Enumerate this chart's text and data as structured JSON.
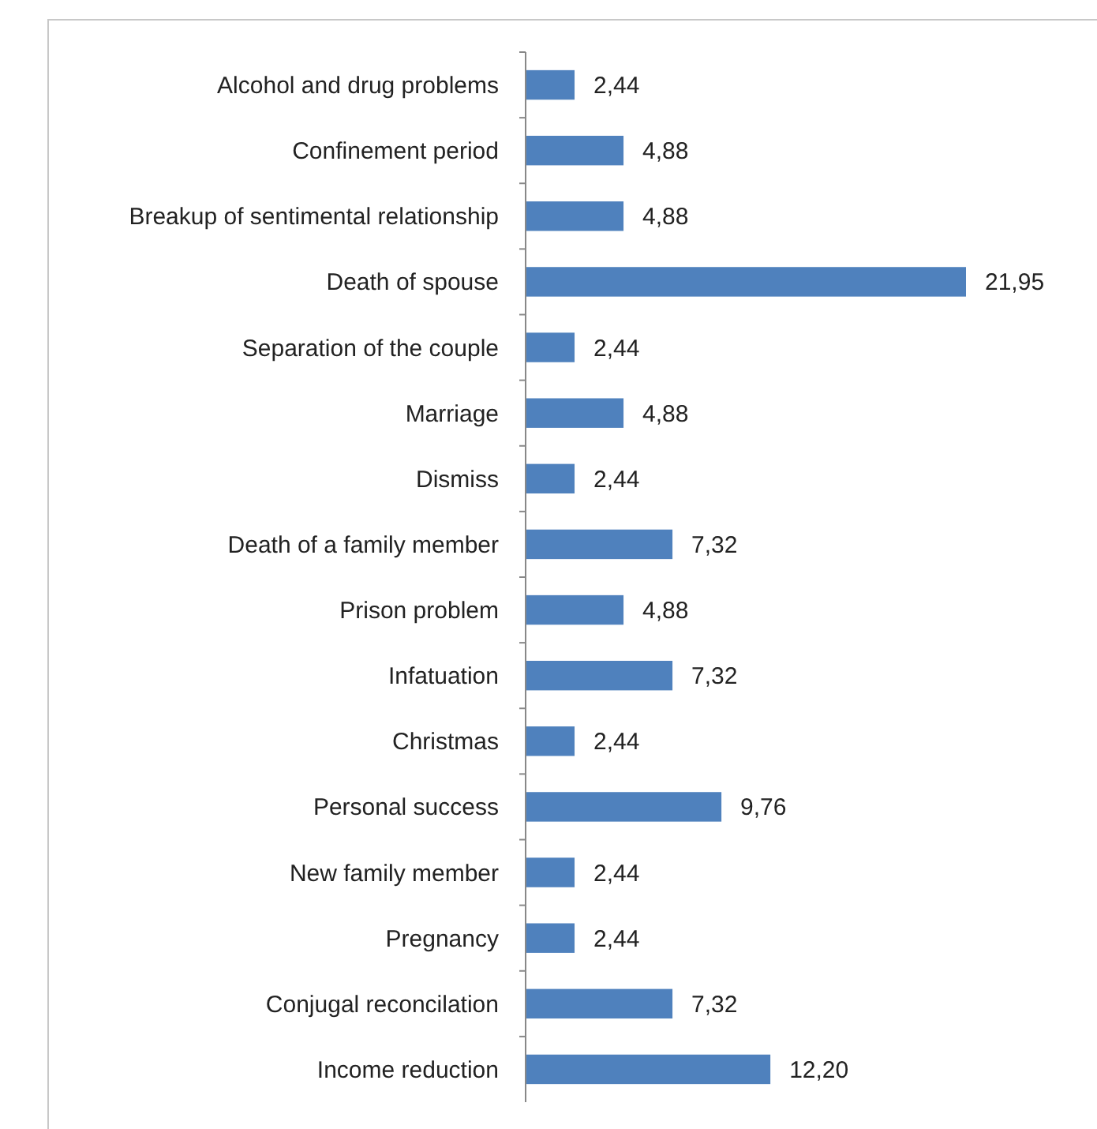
{
  "chart_data": {
    "type": "bar",
    "orientation": "horizontal",
    "categories": [
      "Alcohol and drug problems",
      "Confinement period",
      "Breakup of sentimental relationship",
      "Death of spouse",
      "Separation of the couple",
      "Marriage",
      "Dismiss",
      "Death of a family member",
      "Prison problem",
      "Infatuation",
      "Christmas",
      "Personal success",
      "New family member",
      "Pregnancy",
      "Conjugal reconcilation",
      "Income reduction"
    ],
    "values": [
      2.44,
      4.88,
      4.88,
      21.95,
      2.44,
      4.88,
      2.44,
      7.32,
      4.88,
      7.32,
      2.44,
      9.76,
      2.44,
      2.44,
      7.32,
      12.2
    ],
    "value_labels": [
      "2,44",
      "4,88",
      "4,88",
      "21,95",
      "2,44",
      "4,88",
      "2,44",
      "7,32",
      "4,88",
      "7,32",
      "2,44",
      "9,76",
      "2,44",
      "2,44",
      "7,32",
      "12,20"
    ],
    "color": "#4f81bd"
  }
}
